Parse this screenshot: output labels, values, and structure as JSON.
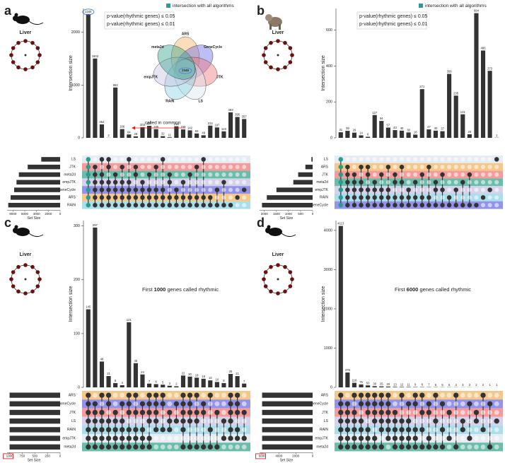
{
  "chart_data": [
    {
      "type": "upset",
      "panel": "a",
      "tissue": "Liver",
      "organism": "mouse",
      "ylabel": "Intersection size",
      "set_size_label": "Set Size",
      "sets": [
        "LS",
        "JTK",
        "meta2d",
        "empJTK",
        "GeneCycle",
        "ARS",
        "RAIN"
      ],
      "set_sizes": [
        3200,
        5500,
        7000,
        7400,
        7800,
        8400,
        8800
      ],
      "set_colors": [
        "#dde6f0",
        "#f07a7a",
        "#3aa68f",
        "#c9c3e6",
        "#6f6fe6",
        "#f2b563",
        "#8fd3e3"
      ],
      "xlim": [
        0,
        9000
      ],
      "xticks": [
        0,
        2000,
        4000,
        6000,
        8000
      ],
      "values": [
        2345,
        1502,
        254,
        2,
        953,
        166,
        64,
        28,
        203,
        227,
        165,
        32,
        11,
        218,
        159,
        142,
        83,
        49,
        232,
        197,
        123,
        483,
        395,
        357
      ],
      "members": [
        [
          0,
          1,
          2,
          3,
          4,
          5,
          6
        ],
        [
          1,
          2,
          3,
          4,
          5,
          6
        ],
        [
          0,
          2,
          3,
          4,
          5,
          6
        ],
        [
          0,
          1,
          3,
          4,
          5,
          6
        ],
        [
          2,
          3,
          4,
          5,
          6
        ],
        [
          1,
          3,
          4,
          5,
          6
        ],
        [
          0,
          3,
          4,
          5,
          6
        ],
        [
          1,
          2,
          4,
          5,
          6
        ],
        [
          3,
          4,
          5,
          6
        ],
        [
          2,
          4,
          5,
          6
        ],
        [
          1,
          4,
          5,
          6
        ],
        [
          0,
          4,
          5,
          6
        ],
        [
          2,
          3,
          5,
          6
        ],
        [
          4,
          5,
          6
        ],
        [
          3,
          5,
          6
        ],
        [
          2,
          5,
          6
        ],
        [
          1,
          5,
          6
        ],
        [
          0,
          5,
          6
        ],
        [
          5,
          6
        ],
        [
          4,
          6
        ],
        [
          3,
          6
        ],
        [
          6
        ],
        [
          5
        ],
        [
          4
        ]
      ],
      "ylim": [
        0,
        2450
      ],
      "yticks": [
        0,
        1000,
        2000
      ],
      "bar_color": "#333333",
      "legend": "intersection with all algorithms",
      "legend_color": "#2a9d8f",
      "pvalue_lines": [
        "p-value(rhythmic genes) ≤ 0.05",
        "p-value(rhythmic genes) ≤ 0.01"
      ],
      "annotation": "called in common",
      "venn": {
        "sets": [
          "ARS",
          "GeneCycle",
          "JTK",
          "LS",
          "RAIN",
          "empJTK",
          "meta2d"
        ],
        "center": 2345
      }
    },
    {
      "type": "upset",
      "panel": "b",
      "tissue": "Liver",
      "organism": "baboon",
      "ylabel": "Intersection size",
      "set_size_label": "Set Size",
      "sets": [
        "LS",
        "ARS",
        "JTK",
        "meta2d",
        "empJTK",
        "RAIN",
        "GeneCycle"
      ],
      "set_sizes": [
        50,
        300,
        600,
        800,
        1500,
        1900,
        2100
      ],
      "set_colors": [
        "#dde6f0",
        "#f2b563",
        "#f07a7a",
        "#3aa68f",
        "#c9c3e6",
        "#8fd3e3",
        "#6f6fe6"
      ],
      "xlim": [
        0,
        2200
      ],
      "xticks": [
        0,
        500,
        1000,
        1500,
        2000
      ],
      "values": [
        31,
        39,
        29,
        14,
        6,
        127,
        94,
        57,
        43,
        40,
        30,
        18,
        271,
        47,
        40,
        37,
        356,
        235,
        131,
        20,
        694,
        486,
        373,
        1
      ],
      "members": [
        [
          0,
          1,
          2,
          3,
          4,
          5,
          6
        ],
        [
          1,
          2,
          3,
          4,
          5,
          6
        ],
        [
          2,
          3,
          4,
          5,
          6
        ],
        [
          1,
          3,
          4,
          5,
          6
        ],
        [
          1,
          2,
          4,
          5,
          6
        ],
        [
          3,
          4,
          5,
          6
        ],
        [
          2,
          4,
          5,
          6
        ],
        [
          1,
          4,
          5,
          6
        ],
        [
          2,
          3,
          5,
          6
        ],
        [
          1,
          3,
          5,
          6
        ],
        [
          4,
          5,
          6
        ],
        [
          3,
          5,
          6
        ],
        [
          2,
          5,
          6
        ],
        [
          1,
          5,
          6
        ],
        [
          3,
          4,
          6
        ],
        [
          2,
          4,
          6
        ],
        [
          5,
          6
        ],
        [
          4,
          6
        ],
        [
          3,
          6
        ],
        [
          2,
          6
        ],
        [
          6
        ],
        [
          5
        ],
        [
          4
        ],
        [
          0
        ]
      ],
      "ylim": [
        0,
        720
      ],
      "yticks": [
        0,
        200,
        400,
        600
      ],
      "bar_color": "#333333",
      "legend": "intersection with all algorithms",
      "legend_color": "#2a9d8f",
      "pvalue_lines": [
        "p-value(rhythmic genes) ≤ 0.05",
        "p-value(rhythmic genes) ≤ 0.01"
      ]
    },
    {
      "type": "upset",
      "panel": "c",
      "tissue": "Liver",
      "organism": "mouse",
      "ylabel": "Intersection size",
      "set_size_label": "Set Size",
      "sets": [
        "ARS",
        "GeneCycle",
        "JTK",
        "LS",
        "RAIN",
        "empJTK",
        "meta2d"
      ],
      "set_sizes": [
        1000,
        1000,
        1000,
        1000,
        1000,
        1000,
        1000
      ],
      "set_colors": [
        "#f2b563",
        "#6f6fe6",
        "#f07a7a",
        "#c9c3e6",
        "#8fd3e3",
        "#dde6f0",
        "#3aa68f"
      ],
      "xlim": [
        0,
        1050
      ],
      "xticks": [
        0,
        250,
        500,
        750,
        1000
      ],
      "highlight_tick": true,
      "values": [
        145,
        297,
        48,
        21,
        8,
        4,
        121,
        45,
        24,
        7,
        6,
        5,
        3,
        2,
        22,
        20,
        18,
        16,
        13,
        10,
        8,
        25,
        21,
        7
      ],
      "members": [
        [
          0,
          1,
          2,
          3,
          4,
          5,
          6
        ],
        [
          1,
          2,
          3,
          4,
          5,
          6
        ],
        [
          0,
          2,
          3,
          4,
          5,
          6
        ],
        [
          0,
          1,
          3,
          4,
          5,
          6
        ],
        [
          2,
          3,
          4,
          5,
          6
        ],
        [
          1,
          3,
          4,
          5,
          6
        ],
        [
          0,
          1,
          2,
          4,
          5,
          6
        ],
        [
          0,
          2,
          4,
          5,
          6
        ],
        [
          1,
          2,
          4,
          5,
          6
        ],
        [
          0,
          1,
          2,
          3,
          5,
          6
        ],
        [
          0,
          1,
          2,
          3,
          4
        ],
        [
          0,
          1,
          4
        ],
        [
          2,
          3,
          4
        ],
        [
          1,
          3
        ],
        [
          0,
          1,
          2,
          3,
          4,
          6
        ],
        [
          0,
          1,
          2,
          3,
          6
        ],
        [
          0,
          2,
          3,
          6
        ],
        [
          1,
          2,
          6
        ],
        [
          0,
          4,
          6
        ],
        [
          2,
          6
        ],
        [
          3,
          5
        ],
        [
          0,
          1,
          2,
          3,
          4,
          5
        ],
        [
          0,
          1,
          2,
          4,
          5
        ],
        [
          2,
          5
        ]
      ],
      "ylim": [
        0,
        310
      ],
      "yticks": [
        0,
        100,
        200,
        300
      ],
      "bar_color": "#333333",
      "annotation_parts": [
        "First ",
        "1000",
        " genes called rhythmic"
      ]
    },
    {
      "type": "upset",
      "panel": "d",
      "tissue": "Liver",
      "organism": "mouse",
      "ylabel": "Intersection size",
      "set_size_label": "Set Size",
      "sets": [
        "ARS",
        "GeneCycle",
        "JTK",
        "LS",
        "RAIN",
        "empJTK",
        "meta2d"
      ],
      "set_sizes": [
        6000,
        6000,
        6000,
        6000,
        6000,
        6000,
        6000
      ],
      "set_colors": [
        "#f2b563",
        "#6f6fe6",
        "#f07a7a",
        "#c9c3e6",
        "#8fd3e3",
        "#dde6f0",
        "#3aa68f"
      ],
      "xlim": [
        0,
        6300
      ],
      "xticks": [
        0,
        2000,
        4000,
        6000
      ],
      "highlight_tick": true,
      "values": [
        4113,
        379,
        116,
        75,
        50,
        30,
        25,
        20,
        13,
        12,
        11,
        9,
        8,
        7,
        6,
        5,
        5,
        4,
        3,
        3,
        2,
        2,
        1,
        1
      ],
      "members": [
        [
          0,
          1,
          2,
          3,
          4,
          5,
          6
        ],
        [
          1,
          2,
          3,
          4,
          5,
          6
        ],
        [
          0,
          2,
          3,
          4,
          5,
          6
        ],
        [
          0,
          1,
          3,
          4,
          5,
          6
        ],
        [
          0,
          1,
          2,
          4,
          5,
          6
        ],
        [
          0,
          1,
          2,
          3,
          5,
          6
        ],
        [
          0,
          1,
          2,
          3,
          4,
          6
        ],
        [
          0,
          1,
          2,
          3,
          4,
          5
        ],
        [
          2,
          3,
          4,
          5,
          6
        ],
        [
          0,
          3,
          4,
          5,
          6
        ],
        [
          1,
          3,
          4,
          5,
          6
        ],
        [
          0,
          1,
          4,
          5,
          6
        ],
        [
          0,
          2,
          4,
          6
        ],
        [
          1,
          2,
          5,
          6
        ],
        [
          0,
          3,
          6
        ],
        [
          1,
          4,
          6
        ],
        [
          2,
          5
        ],
        [
          0,
          6
        ],
        [
          3,
          4
        ],
        [
          1,
          5
        ],
        [
          2,
          3
        ],
        [
          0,
          4
        ],
        [
          1,
          6
        ],
        [
          3
        ]
      ],
      "ylim": [
        0,
        4250
      ],
      "yticks": [
        0,
        1000,
        2000,
        3000,
        4000
      ],
      "bar_color": "#333333",
      "annotation_parts": [
        "First ",
        "6000",
        " genes called rhythmic"
      ]
    }
  ]
}
